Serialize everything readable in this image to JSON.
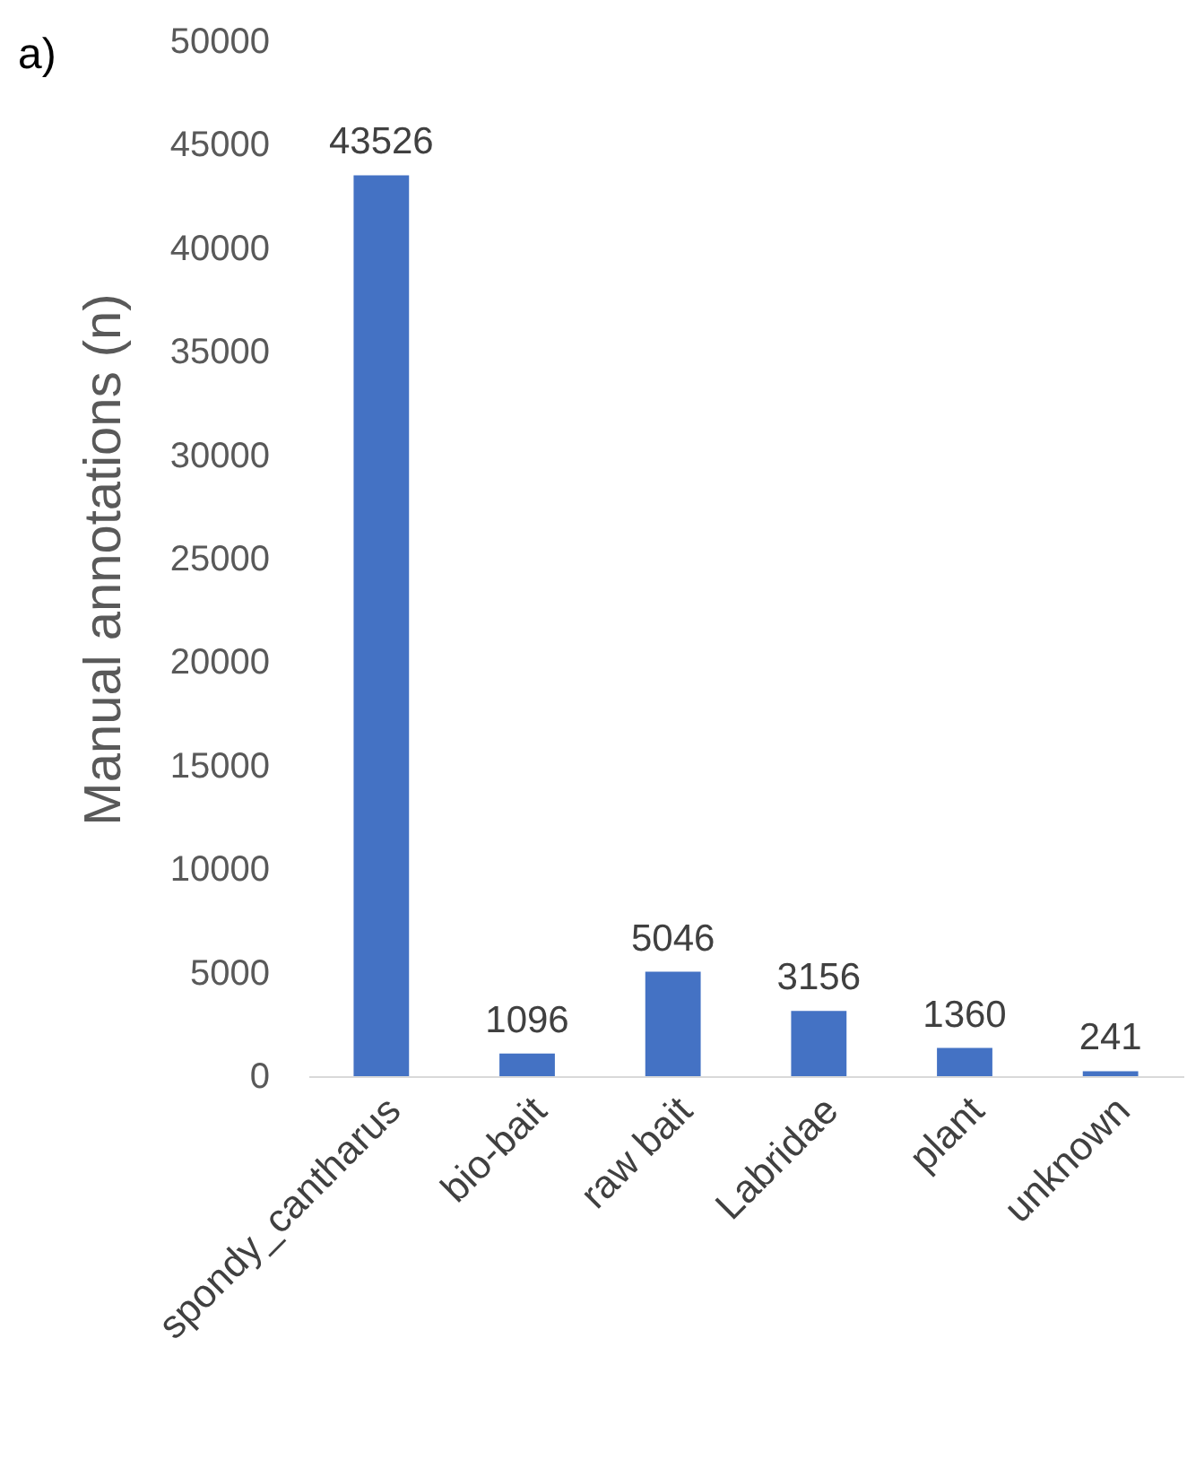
{
  "chart_data": {
    "type": "bar",
    "title": "a)",
    "ylabel": "Manual annotations (n)",
    "categories": [
      "spondy_cantharus",
      "bio-bait",
      "raw bait",
      "Labridae",
      "plant",
      "unknown"
    ],
    "values": [
      43526,
      1096,
      5046,
      3156,
      1360,
      241
    ],
    "color": "#4472c4",
    "ylim": [
      0,
      50000
    ],
    "yticks": [
      0,
      5000,
      10000,
      15000,
      20000,
      25000,
      30000,
      35000,
      40000,
      45000,
      50000
    ],
    "grid": false,
    "data_labels": true
  }
}
